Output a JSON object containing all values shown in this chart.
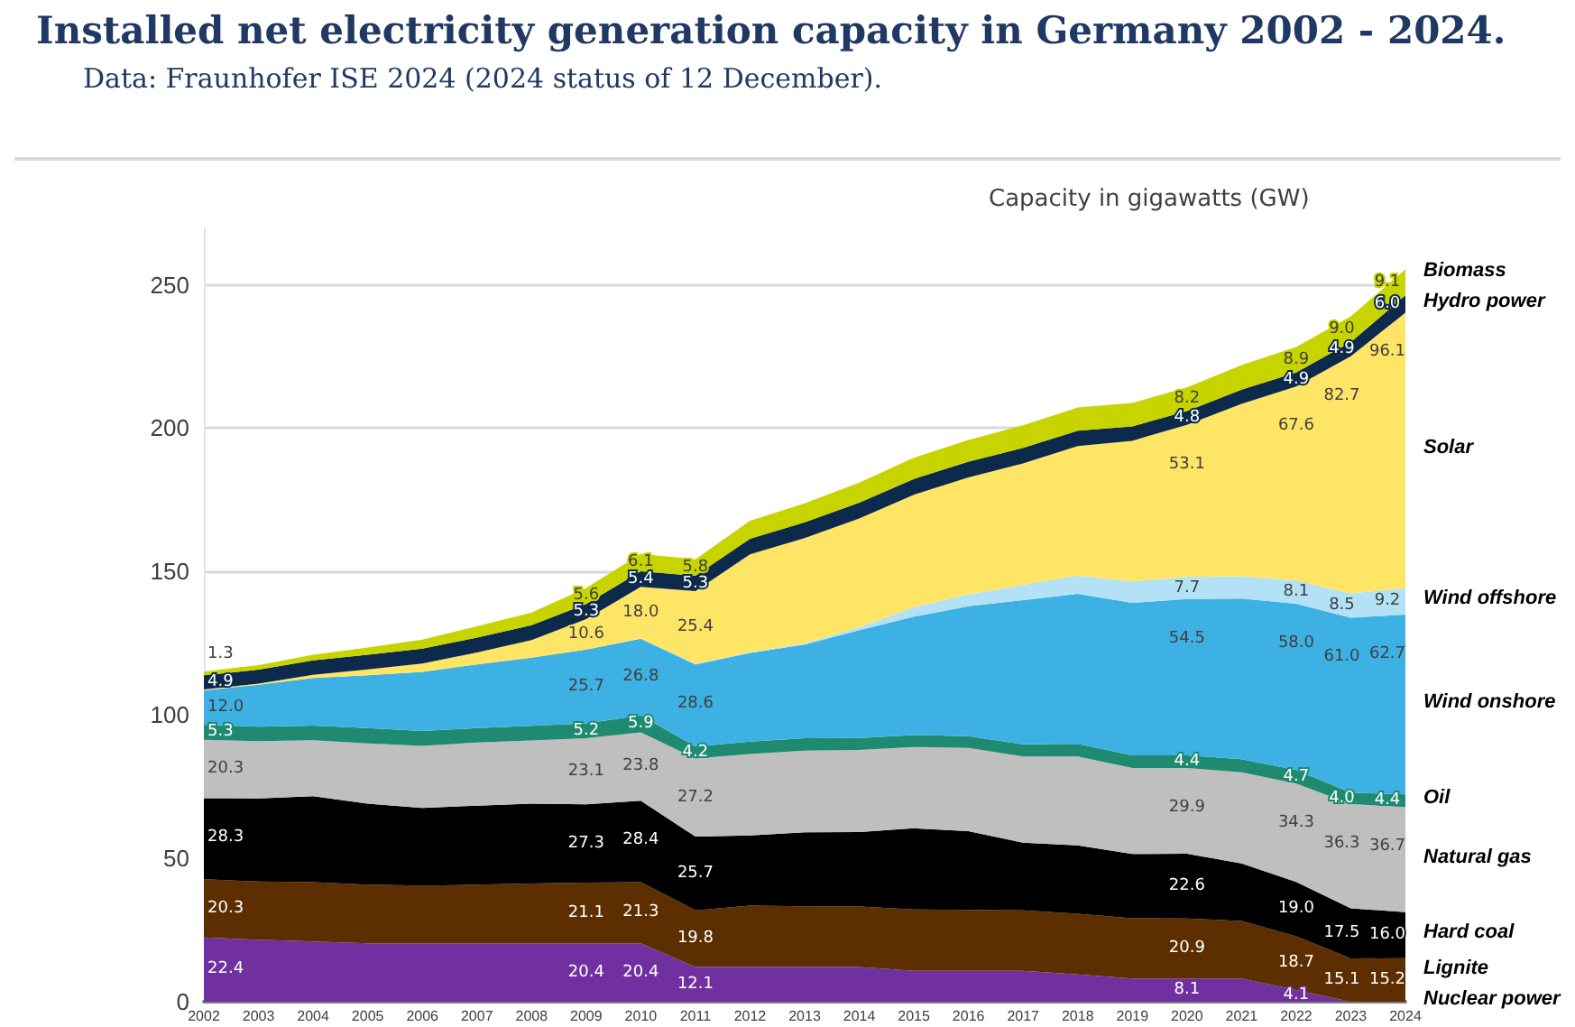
{
  "chart_data": {
    "type": "area",
    "stacked": true,
    "title": "Installed net electricity generation capacity in Germany 2002 - 2024.",
    "subtitle": "Data: Fraunhofer ISE 2024 (2024 status of 12 December).",
    "ylabel": "Capacity in gigawatts (GW)",
    "categories": [
      "2002",
      "2003",
      "2004",
      "2005",
      "2006",
      "2007",
      "2008",
      "2009",
      "2010",
      "2011",
      "2012",
      "2013",
      "2014",
      "2015",
      "2016",
      "2017",
      "2018",
      "2019",
      "2020",
      "2021",
      "2022",
      "2023",
      "2024"
    ],
    "ylim": [
      0,
      270
    ],
    "yticks": [
      0,
      50,
      100,
      150,
      200,
      250
    ],
    "grid": "y",
    "legend": false,
    "series": [
      {
        "name": "Nuclear power",
        "color": "#7030a0",
        "values": [
          22.4,
          21.6,
          21.0,
          20.4,
          20.4,
          20.4,
          20.4,
          20.4,
          20.4,
          12.1,
          12.1,
          12.1,
          12.1,
          10.8,
          10.8,
          10.8,
          9.5,
          8.1,
          8.1,
          8.1,
          4.1,
          0,
          0
        ],
        "value_labels": [
          "22.4",
          null,
          null,
          null,
          null,
          null,
          null,
          "20.4",
          "20.4",
          "12.1",
          null,
          null,
          null,
          null,
          null,
          null,
          null,
          null,
          "8.1",
          null,
          "4.1",
          null,
          null
        ]
      },
      {
        "name": "Lignite",
        "color": "#5c2e00",
        "values": [
          20.3,
          20.3,
          20.7,
          20.4,
          20.1,
          20.4,
          20.8,
          21.1,
          21.3,
          19.8,
          21.4,
          21.2,
          21.1,
          21.4,
          21.2,
          21.1,
          21.2,
          21.0,
          20.9,
          20.1,
          18.7,
          15.1,
          15.2
        ],
        "value_labels": [
          "20.3",
          null,
          null,
          null,
          null,
          null,
          null,
          "21.1",
          "21.3",
          "19.8",
          null,
          null,
          null,
          null,
          null,
          null,
          null,
          null,
          "20.9",
          null,
          "18.7",
          "15.1",
          "15.2"
        ]
      },
      {
        "name": "Hard coal",
        "color": "#000000",
        "values": [
          28.3,
          29.0,
          30.0,
          28.3,
          27.1,
          27.6,
          27.9,
          27.3,
          28.4,
          25.7,
          24.5,
          25.8,
          26.0,
          28.3,
          27.5,
          23.6,
          23.8,
          22.4,
          22.6,
          20.0,
          19.0,
          17.5,
          16.0
        ],
        "value_labels": [
          "28.3",
          null,
          null,
          null,
          null,
          null,
          null,
          "27.3",
          "28.4",
          "25.7",
          null,
          null,
          null,
          null,
          null,
          null,
          null,
          null,
          "22.6",
          null,
          "19.0",
          "17.5",
          "16.0"
        ]
      },
      {
        "name": "Natural gas",
        "color": "#bfbfbf",
        "values": [
          20.3,
          20.0,
          19.5,
          21.0,
          21.6,
          22.0,
          22.0,
          23.1,
          23.8,
          27.2,
          28.4,
          28.5,
          28.6,
          28.3,
          29.0,
          30.0,
          31.0,
          30.0,
          29.9,
          31.8,
          34.3,
          36.3,
          36.7
        ],
        "value_labels": [
          "20.3",
          null,
          null,
          null,
          null,
          null,
          null,
          "23.1",
          "23.8",
          "27.2",
          null,
          null,
          null,
          null,
          null,
          null,
          null,
          null,
          "29.9",
          null,
          "34.3",
          "36.3",
          "36.7"
        ]
      },
      {
        "name": "Oil",
        "color": "#1f8a70",
        "values": [
          5.3,
          5.0,
          5.1,
          5.3,
          5.2,
          5.0,
          5.1,
          5.2,
          5.9,
          4.2,
          4.3,
          4.3,
          4.2,
          4.2,
          4.1,
          4.3,
          4.4,
          4.4,
          4.4,
          4.6,
          4.7,
          4.0,
          4.4
        ],
        "value_labels": [
          "5.3",
          null,
          null,
          null,
          null,
          null,
          null,
          "5.2",
          "5.9",
          "4.2",
          null,
          null,
          null,
          null,
          null,
          null,
          null,
          null,
          "4.4",
          null,
          "4.7",
          "4.0",
          "4.4"
        ]
      },
      {
        "name": "Wind onshore",
        "color": "#3eb1e4",
        "values": [
          12.0,
          14.6,
          16.6,
          18.4,
          20.6,
          22.2,
          23.8,
          25.7,
          26.8,
          28.6,
          30.9,
          32.6,
          37.6,
          41.3,
          45.3,
          50.2,
          52.3,
          53.2,
          54.5,
          56.0,
          58.0,
          61.0,
          62.7
        ],
        "value_labels": [
          "12.0",
          null,
          null,
          null,
          null,
          null,
          null,
          "25.7",
          "26.8",
          "28.6",
          null,
          null,
          null,
          null,
          null,
          null,
          null,
          null,
          "54.5",
          null,
          "58.0",
          "61.0",
          "62.7"
        ]
      },
      {
        "name": "Wind offshore",
        "color": "#b3e1f5",
        "values": [
          0,
          0,
          0,
          0,
          0,
          0,
          0,
          0,
          0.1,
          0.2,
          0.3,
          0.5,
          1.0,
          3.3,
          4.2,
          5.4,
          6.4,
          7.5,
          7.7,
          7.8,
          8.1,
          8.5,
          9.2
        ],
        "value_labels": [
          null,
          null,
          null,
          null,
          null,
          null,
          null,
          null,
          null,
          null,
          null,
          null,
          null,
          null,
          null,
          null,
          null,
          null,
          "7.7",
          null,
          "8.1",
          "8.5",
          "9.2"
        ]
      },
      {
        "name": "Solar",
        "color": "#ffe566",
        "values": [
          0.3,
          0.4,
          1.1,
          2.1,
          2.9,
          4.2,
          6.1,
          10.6,
          18.0,
          25.4,
          34.1,
          36.7,
          37.9,
          39.2,
          40.7,
          42.3,
          45.2,
          49.0,
          53.1,
          60.1,
          67.6,
          82.7,
          96.1
        ],
        "value_labels": [
          null,
          null,
          null,
          null,
          null,
          null,
          null,
          "10.6",
          "18.0",
          "25.4",
          null,
          null,
          null,
          null,
          null,
          null,
          null,
          null,
          "53.1",
          null,
          "67.6",
          "82.7",
          "96.1"
        ]
      },
      {
        "name": "Hydro power",
        "color": "#0d2a4c",
        "values": [
          4.9,
          4.9,
          5.0,
          5.1,
          5.2,
          5.2,
          5.2,
          5.3,
          5.4,
          5.3,
          5.4,
          5.5,
          5.5,
          5.5,
          5.5,
          5.4,
          5.3,
          5.0,
          4.8,
          4.9,
          4.9,
          4.9,
          6.0
        ],
        "value_labels": [
          "4.9",
          null,
          null,
          null,
          null,
          null,
          null,
          "5.3",
          "5.4",
          "5.3",
          null,
          null,
          null,
          null,
          null,
          null,
          null,
          null,
          "4.8",
          null,
          "4.9",
          "4.9",
          "6.0"
        ]
      },
      {
        "name": "Biomass",
        "color": "#c8d400",
        "values": [
          1.3,
          1.6,
          2.0,
          2.5,
          3.2,
          3.9,
          4.4,
          5.6,
          6.1,
          5.8,
          6.3,
          6.6,
          7.0,
          7.4,
          7.6,
          7.9,
          8.1,
          8.2,
          8.2,
          8.6,
          8.9,
          9.0,
          9.1
        ],
        "value_labels": [
          "1.3",
          null,
          null,
          null,
          null,
          null,
          null,
          "5.6",
          "6.1",
          "5.8",
          null,
          null,
          null,
          null,
          null,
          null,
          null,
          null,
          "8.2",
          null,
          "8.9",
          "9.0",
          "9.1"
        ]
      }
    ]
  }
}
